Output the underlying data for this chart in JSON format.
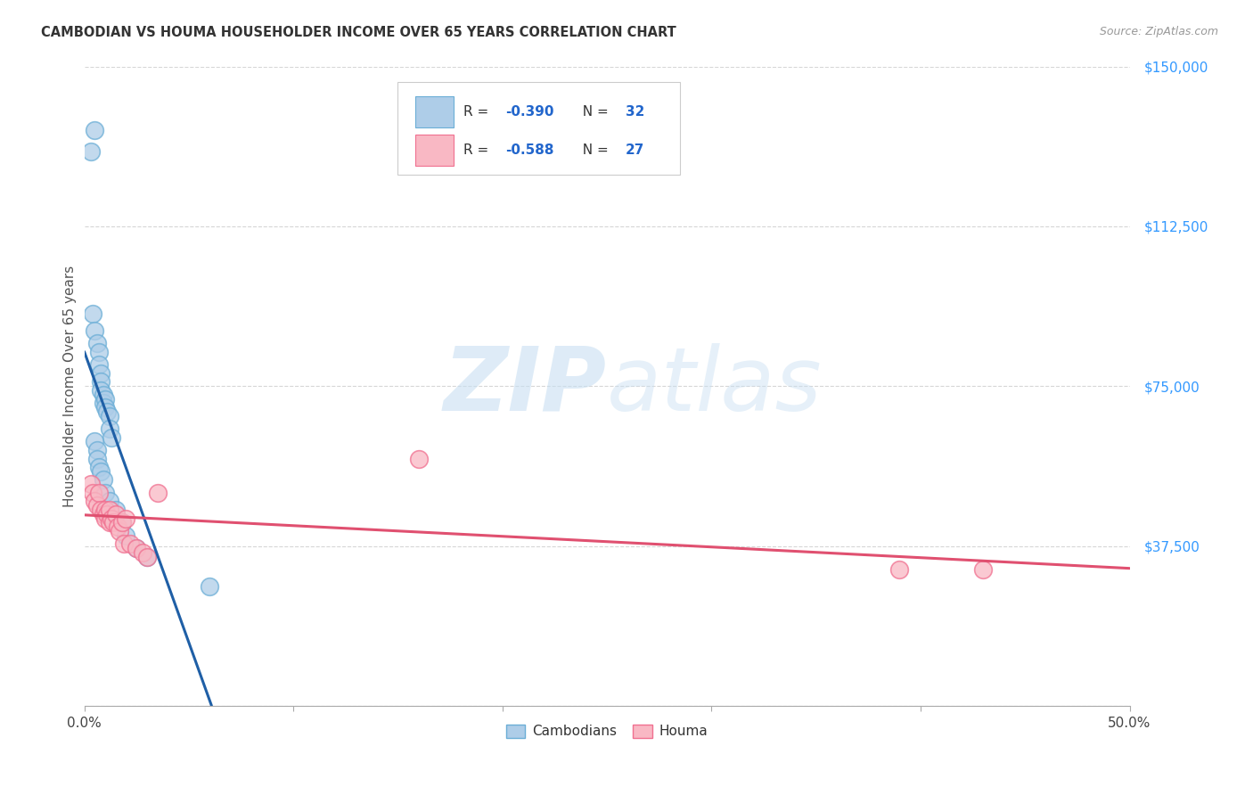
{
  "title": "CAMBODIAN VS HOUMA HOUSEHOLDER INCOME OVER 65 YEARS CORRELATION CHART",
  "source": "Source: ZipAtlas.com",
  "ylabel": "Householder Income Over 65 years",
  "x_min": 0.0,
  "x_max": 0.5,
  "y_min": 0,
  "y_max": 150000,
  "yticks": [
    0,
    37500,
    75000,
    112500,
    150000
  ],
  "ytick_labels": [
    "",
    "$37,500",
    "$75,000",
    "$112,500",
    "$150,000"
  ],
  "xticks": [
    0.0,
    0.1,
    0.2,
    0.3,
    0.4,
    0.5
  ],
  "xtick_labels": [
    "0.0%",
    "",
    "",
    "",
    "",
    "50.0%"
  ],
  "background_color": "#ffffff",
  "watermark_line1": "ZIP",
  "watermark_line2": "atlas",
  "cambodian_color": "#aecde8",
  "cambodian_edge": "#6baed6",
  "houma_color": "#f9b8c4",
  "houma_edge": "#f07090",
  "trend_cambodian_color": "#1f5fa6",
  "trend_houma_color": "#e05070",
  "cambodian_points_x": [
    0.003,
    0.005,
    0.004,
    0.005,
    0.006,
    0.007,
    0.007,
    0.008,
    0.008,
    0.008,
    0.009,
    0.009,
    0.01,
    0.01,
    0.011,
    0.012,
    0.012,
    0.013,
    0.005,
    0.006,
    0.006,
    0.007,
    0.008,
    0.009,
    0.01,
    0.012,
    0.015,
    0.018,
    0.02,
    0.025,
    0.03,
    0.06
  ],
  "cambodian_points_y": [
    130000,
    135000,
    92000,
    88000,
    85000,
    83000,
    80000,
    78000,
    76000,
    74000,
    73000,
    71000,
    72000,
    70000,
    69000,
    68000,
    65000,
    63000,
    62000,
    60000,
    58000,
    56000,
    55000,
    53000,
    50000,
    48000,
    46000,
    43000,
    40000,
    37000,
    35000,
    28000
  ],
  "houma_points_x": [
    0.003,
    0.004,
    0.005,
    0.006,
    0.007,
    0.008,
    0.009,
    0.01,
    0.01,
    0.011,
    0.012,
    0.012,
    0.013,
    0.014,
    0.015,
    0.016,
    0.017,
    0.018,
    0.019,
    0.02,
    0.022,
    0.025,
    0.028,
    0.03,
    0.035,
    0.16,
    0.39,
    0.43
  ],
  "houma_points_y": [
    52000,
    50000,
    48000,
    47000,
    50000,
    46000,
    45000,
    46000,
    44000,
    45000,
    43000,
    46000,
    44000,
    43000,
    45000,
    42000,
    41000,
    43000,
    38000,
    44000,
    38000,
    37000,
    36000,
    35000,
    50000,
    58000,
    32000,
    32000
  ]
}
